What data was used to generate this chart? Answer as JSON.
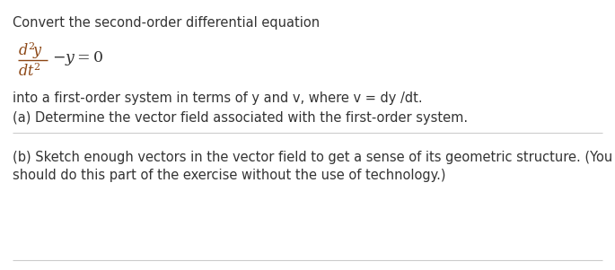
{
  "bg_color": "#ffffff",
  "text_color": "#333333",
  "fraction_color": "#8B4513",
  "line1": "Convert the second-order differential equation",
  "fraction_num": "$d^2y$",
  "fraction_den": "$dt^2$",
  "equation_main": "$\\dfrac{d^2y}{dt^2} - y = 0$",
  "line3": "into a first-order system in terms of y and v, where v = dy /dt.",
  "line4": "(a) Determine the vector field associated with the first-order system.",
  "line5": "(b) Sketch enough vectors in the vector field to get a sense of its geometric structure. (You",
  "line6": "should do this part of the exercise without the use of technology.)",
  "font_size_main": 10.5,
  "sep_color": "#cccccc",
  "sep_linewidth": 0.8
}
